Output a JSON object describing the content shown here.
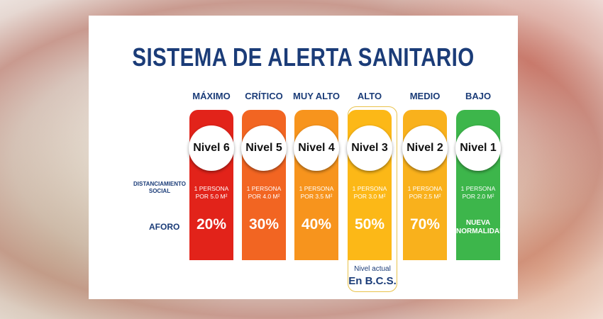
{
  "title": "SISTEMA DE ALERTA SANITARIO",
  "row_labels": {
    "distancing": "DISTANCIAMIENTO SOCIAL",
    "aforo": "AFORO"
  },
  "levels": [
    {
      "header": "MÁXIMO",
      "nivel": "Nivel 6",
      "distancing": "1 PERSONA POR 5.0 M²",
      "aforo": "20%",
      "color": "#e2231a"
    },
    {
      "header": "CRÍTICO",
      "nivel": "Nivel 5",
      "distancing": "1 PERSONA POR 4.0 M²",
      "aforo": "30%",
      "color": "#f26522"
    },
    {
      "header": "MUY ALTO",
      "nivel": "Nivel 4",
      "distancing": "1 PERSONA POR 3.5 M²",
      "aforo": "40%",
      "color": "#f7941d"
    },
    {
      "header": "ALTO",
      "nivel": "Nivel 3",
      "distancing": "1 PERSONA POR 3.0 M²",
      "aforo": "50%",
      "color": "#fcb817"
    },
    {
      "header": "MEDIO",
      "nivel": "Nivel 2",
      "distancing": "1 PERSONA POR 2.5 M²",
      "aforo": "70%",
      "color": "#f9b11c"
    },
    {
      "header": "BAJO",
      "nivel": "Nivel 1",
      "distancing": "1 PERSONA POR 2.0 M²",
      "aforo": "NUEVA NORMALIDAD",
      "color": "#3db64b"
    }
  ],
  "current": {
    "label": "Nivel actual",
    "place": "En B.C.S."
  }
}
